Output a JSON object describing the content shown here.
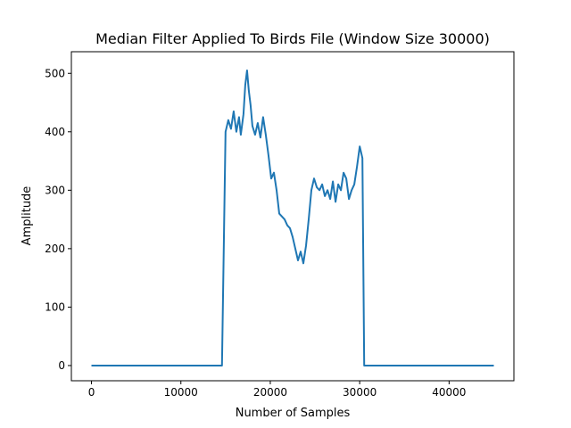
{
  "chart_data": {
    "type": "line",
    "title": "Median Filter Applied To Birds File (Window Size 30000)",
    "xlabel": "Number of Samples",
    "ylabel": "Amplitude",
    "xlim": [
      -2250,
      47250
    ],
    "ylim": [
      -26,
      537
    ],
    "xticks": [
      0,
      10000,
      20000,
      30000,
      40000
    ],
    "yticks": [
      0,
      100,
      200,
      300,
      400,
      500
    ],
    "xtick_labels": [
      "0",
      "10000",
      "20000",
      "30000",
      "40000"
    ],
    "ytick_labels": [
      "0",
      "100",
      "200",
      "300",
      "400",
      "500"
    ],
    "grid": false,
    "legend": "none",
    "series_color": "#1f77b4",
    "series": [
      {
        "x": [
          0,
          14600,
          15000,
          15300,
          15600,
          15900,
          16200,
          16500,
          16700,
          17000,
          17200,
          17400,
          17600,
          17800,
          18000,
          18300,
          18600,
          18900,
          19200,
          19500,
          19800,
          20100,
          20400,
          20700,
          21000,
          21300,
          21600,
          21900,
          22200,
          22500,
          22800,
          23100,
          23400,
          23700,
          24000,
          24300,
          24600,
          24900,
          25200,
          25500,
          25800,
          26100,
          26400,
          26700,
          27000,
          27300,
          27600,
          27900,
          28200,
          28500,
          28800,
          29100,
          29400,
          29700,
          30000,
          30300,
          30500,
          45000
        ],
        "y": [
          0,
          0,
          400,
          420,
          405,
          435,
          400,
          425,
          395,
          430,
          480,
          505,
          470,
          445,
          410,
          395,
          415,
          390,
          425,
          395,
          360,
          320,
          330,
          300,
          260,
          255,
          250,
          240,
          235,
          220,
          200,
          180,
          195,
          175,
          205,
          250,
          300,
          320,
          305,
          300,
          310,
          290,
          300,
          285,
          315,
          280,
          310,
          300,
          330,
          320,
          285,
          300,
          310,
          340,
          375,
          355,
          0,
          0
        ]
      }
    ]
  }
}
